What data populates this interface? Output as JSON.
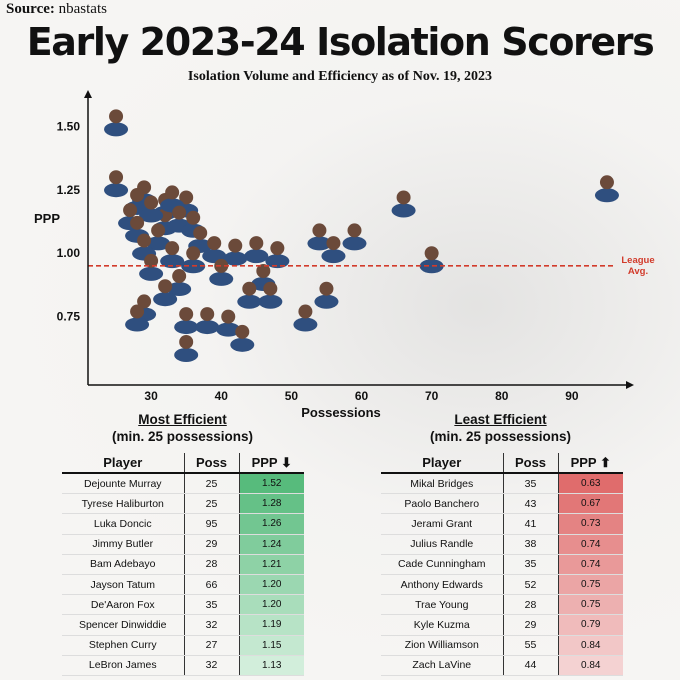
{
  "source": {
    "label": "Source:",
    "value": "nbastats"
  },
  "title": "Early 2023-24 Isolation Scorers",
  "subtitle": "Isolation Volume and Efficiency as of Nov. 19, 2023",
  "sections": {
    "left": {
      "title": "Most Efficient",
      "subtitle": "(min. 25 possessions)"
    },
    "right": {
      "title": "Least Efficient",
      "subtitle": "(min. 25 possessions)"
    }
  },
  "tables": {
    "most": {
      "headers": [
        "Player",
        "Poss",
        "PPP ⬇"
      ],
      "rows": [
        [
          "Dejounte Murray",
          "25",
          "1.52"
        ],
        [
          "Tyrese Haliburton",
          "25",
          "1.28"
        ],
        [
          "Luka Doncic",
          "95",
          "1.26"
        ],
        [
          "Jimmy Butler",
          "29",
          "1.24"
        ],
        [
          "Bam Adebayo",
          "28",
          "1.21"
        ],
        [
          "Jayson Tatum",
          "66",
          "1.20"
        ],
        [
          "De'Aaron Fox",
          "35",
          "1.20"
        ],
        [
          "Spencer Dinwiddie",
          "32",
          "1.19"
        ],
        [
          "Stephen Curry",
          "27",
          "1.15"
        ],
        [
          "LeBron James",
          "32",
          "1.13"
        ]
      ]
    },
    "least": {
      "headers": [
        "Player",
        "Poss",
        "PPP ⬆"
      ],
      "rows": [
        [
          "Mikal Bridges",
          "35",
          "0.63"
        ],
        [
          "Paolo Banchero",
          "43",
          "0.67"
        ],
        [
          "Jerami Grant",
          "41",
          "0.73"
        ],
        [
          "Julius Randle",
          "38",
          "0.74"
        ],
        [
          "Cade Cunningham",
          "35",
          "0.74"
        ],
        [
          "Anthony Edwards",
          "52",
          "0.75"
        ],
        [
          "Trae Young",
          "28",
          "0.75"
        ],
        [
          "Kyle Kuzma",
          "29",
          "0.79"
        ],
        [
          "Zion Williamson",
          "55",
          "0.84"
        ],
        [
          "Zach LaVine",
          "44",
          "0.84"
        ]
      ]
    }
  },
  "colors": {
    "efficient": "#57bb7c",
    "least": "#e06c6c",
    "avg_line": "#d23b2b"
  },
  "chart_data": {
    "type": "scatter",
    "title": "Early 2023-24 Isolation Scorers",
    "subtitle": "Isolation Volume and Efficiency as of Nov. 19, 2023",
    "xlabel": "Possessions",
    "ylabel": "PPP",
    "xlim": [
      21,
      98
    ],
    "ylim": [
      0.48,
      1.62
    ],
    "xticks": [
      30,
      40,
      50,
      60,
      70,
      80,
      90
    ],
    "yticks": [
      0.75,
      1.0,
      1.25,
      1.5
    ],
    "ytick_labels": [
      "0.75",
      "1.00",
      "1.25",
      "1.50"
    ],
    "league_avg": {
      "value": 0.95,
      "label_line1": "League",
      "label_line2": "Avg."
    },
    "points": [
      {
        "x": 25,
        "y": 1.52
      },
      {
        "x": 25,
        "y": 1.28
      },
      {
        "x": 95,
        "y": 1.26
      },
      {
        "x": 29,
        "y": 1.24
      },
      {
        "x": 28,
        "y": 1.21
      },
      {
        "x": 66,
        "y": 1.2
      },
      {
        "x": 35,
        "y": 1.2
      },
      {
        "x": 32,
        "y": 1.19
      },
      {
        "x": 27,
        "y": 1.15
      },
      {
        "x": 32,
        "y": 1.13
      },
      {
        "x": 33,
        "y": 1.22
      },
      {
        "x": 30,
        "y": 1.18
      },
      {
        "x": 34,
        "y": 1.14
      },
      {
        "x": 36,
        "y": 1.12
      },
      {
        "x": 28,
        "y": 1.1
      },
      {
        "x": 31,
        "y": 1.07
      },
      {
        "x": 37,
        "y": 1.06
      },
      {
        "x": 29,
        "y": 1.03
      },
      {
        "x": 39,
        "y": 1.02
      },
      {
        "x": 45,
        "y": 1.02
      },
      {
        "x": 48,
        "y": 1.0
      },
      {
        "x": 54,
        "y": 1.07
      },
      {
        "x": 59,
        "y": 1.07
      },
      {
        "x": 56,
        "y": 1.02
      },
      {
        "x": 42,
        "y": 1.01
      },
      {
        "x": 33,
        "y": 1.0
      },
      {
        "x": 36,
        "y": 0.98
      },
      {
        "x": 70,
        "y": 0.98
      },
      {
        "x": 30,
        "y": 0.95
      },
      {
        "x": 40,
        "y": 0.93
      },
      {
        "x": 46,
        "y": 0.91
      },
      {
        "x": 34,
        "y": 0.89
      },
      {
        "x": 32,
        "y": 0.85
      },
      {
        "x": 47,
        "y": 0.84
      },
      {
        "x": 55,
        "y": 0.84
      },
      {
        "x": 44,
        "y": 0.84
      },
      {
        "x": 29,
        "y": 0.79
      },
      {
        "x": 28,
        "y": 0.75
      },
      {
        "x": 52,
        "y": 0.75
      },
      {
        "x": 35,
        "y": 0.74
      },
      {
        "x": 38,
        "y": 0.74
      },
      {
        "x": 41,
        "y": 0.73
      },
      {
        "x": 43,
        "y": 0.67
      },
      {
        "x": 35,
        "y": 0.63
      }
    ]
  }
}
